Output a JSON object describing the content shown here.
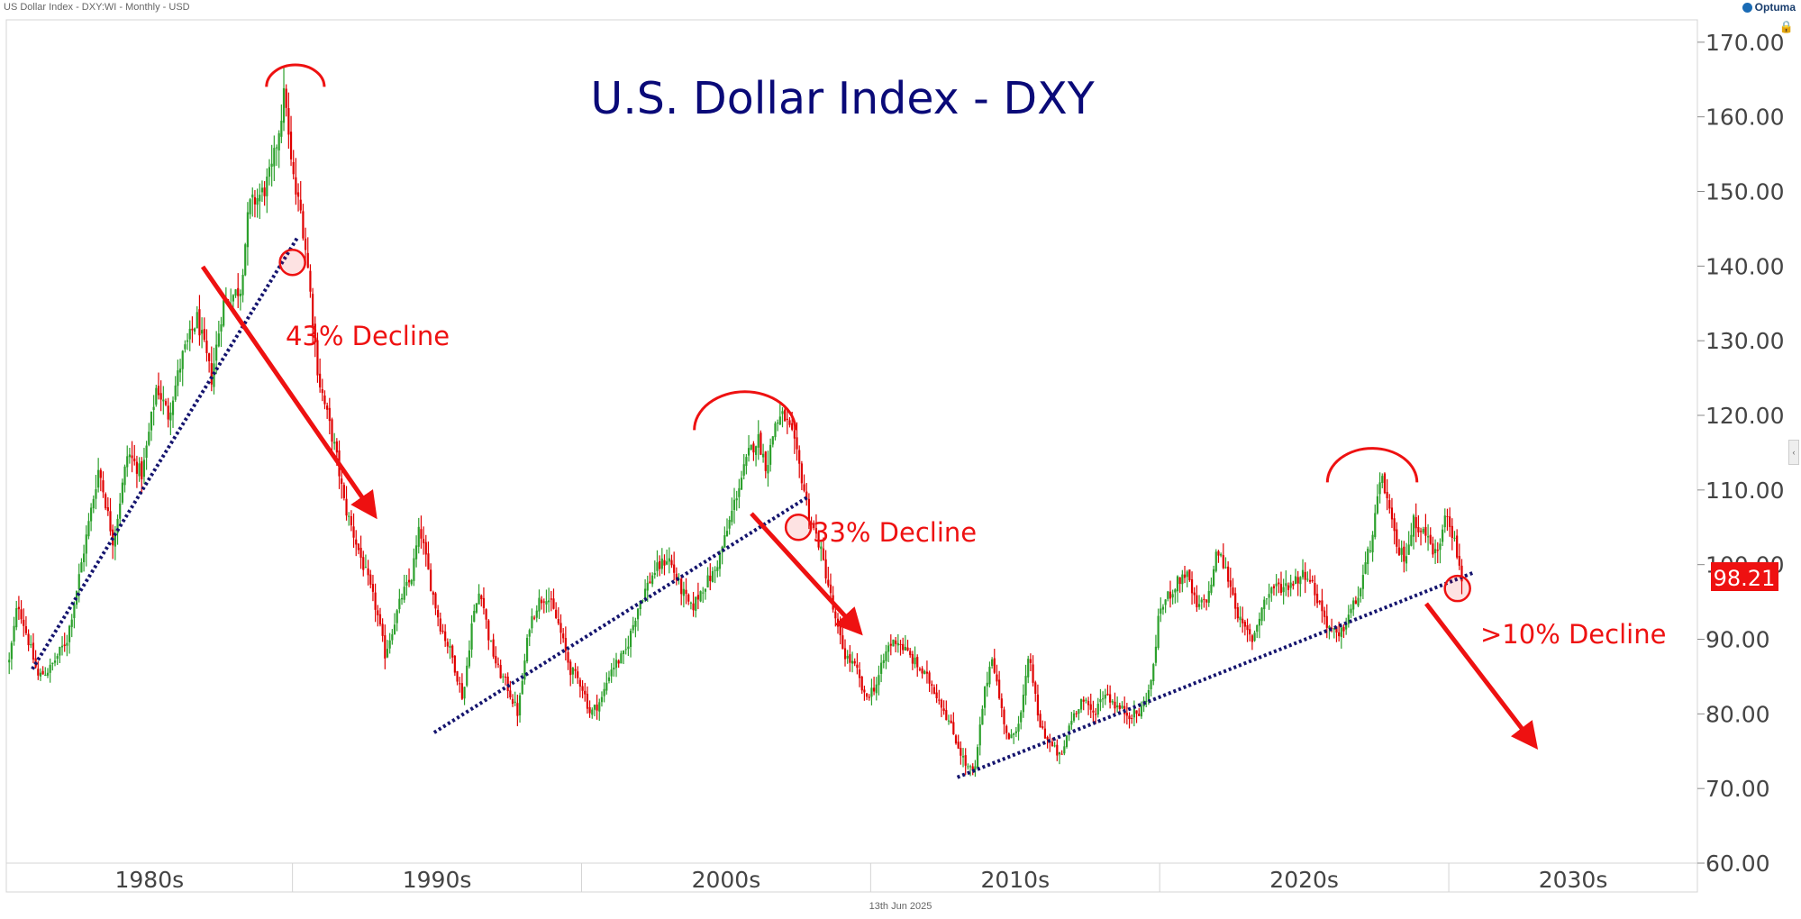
{
  "header": {
    "chart_label": "US Dollar Index - DXY:WI - Monthly - USD",
    "brand": "Optuma",
    "footer_date": "13th Jun 2025"
  },
  "colors": {
    "up": "#2ca02c",
    "down": "#e00000",
    "annotation": "#ee1111",
    "trendline": "#14146e",
    "title": "#0a0a78",
    "price_box": "#ee1111"
  },
  "icons": {
    "lock": "lock-icon",
    "side_handle": "chevron-left-icon"
  },
  "annotations": {
    "declines": [
      {
        "label": "43% Decline"
      },
      {
        "label": "33% Decline"
      },
      {
        "label": ">10% Decline"
      }
    ],
    "last_price": "98.21"
  },
  "chart_data": {
    "type": "candlestick",
    "title": "U.S. Dollar Index - DXY",
    "frequency": "Monthly",
    "currency": "USD",
    "x_range": [
      1975.1,
      2033.6
    ],
    "ylim": [
      60,
      173
    ],
    "y_ticks": [
      "60.00",
      "70.00",
      "80.00",
      "90.00",
      "100.00",
      "110.00",
      "120.00",
      "130.00",
      "140.00",
      "150.00",
      "160.00",
      "170.00"
    ],
    "x_ticks": [
      {
        "label": "1980s",
        "start": 1975,
        "end": 1985
      },
      {
        "label": "1990s",
        "start": 1985,
        "end": 1995
      },
      {
        "label": "2000s",
        "start": 1995,
        "end": 2005
      },
      {
        "label": "2010s",
        "start": 2005,
        "end": 2015
      },
      {
        "label": "2020s",
        "start": 2015,
        "end": 2025
      },
      {
        "label": "2030s",
        "start": 2025,
        "end": 2035
      }
    ],
    "price_path": [
      [
        1975.2,
        87
      ],
      [
        1975.5,
        95
      ],
      [
        1976.2,
        85
      ],
      [
        1976.6,
        86
      ],
      [
        1977.2,
        90
      ],
      [
        1977.6,
        98
      ],
      [
        1978.3,
        113
      ],
      [
        1978.8,
        103
      ],
      [
        1979.3,
        115
      ],
      [
        1979.8,
        112
      ],
      [
        1980.3,
        124
      ],
      [
        1980.7,
        120
      ],
      [
        1981.2,
        128
      ],
      [
        1981.7,
        133
      ],
      [
        1982.2,
        125
      ],
      [
        1982.6,
        135
      ],
      [
        1983.2,
        137
      ],
      [
        1983.5,
        148
      ],
      [
        1984.0,
        150
      ],
      [
        1984.3,
        153
      ],
      [
        1984.6,
        160
      ],
      [
        1984.75,
        164
      ],
      [
        1984.9,
        155
      ],
      [
        1985.1,
        150
      ],
      [
        1985.3,
        147
      ],
      [
        1985.5,
        141
      ],
      [
        1985.7,
        133
      ],
      [
        1985.9,
        125
      ],
      [
        1986.2,
        120
      ],
      [
        1986.5,
        115
      ],
      [
        1986.8,
        108
      ],
      [
        1987.2,
        103
      ],
      [
        1987.6,
        98
      ],
      [
        1987.9,
        94
      ],
      [
        1988.2,
        88
      ],
      [
        1988.5,
        92
      ],
      [
        1988.8,
        96
      ],
      [
        1989.1,
        98
      ],
      [
        1989.4,
        105
      ],
      [
        1989.8,
        97
      ],
      [
        1990.1,
        92
      ],
      [
        1990.5,
        88
      ],
      [
        1990.9,
        82
      ],
      [
        1991.2,
        92
      ],
      [
        1991.5,
        97
      ],
      [
        1991.8,
        90
      ],
      [
        1992.1,
        86
      ],
      [
        1992.4,
        84
      ],
      [
        1992.8,
        80
      ],
      [
        1993.2,
        92
      ],
      [
        1993.5,
        95
      ],
      [
        1993.8,
        96
      ],
      [
        1994.2,
        92
      ],
      [
        1994.6,
        86
      ],
      [
        1995.0,
        84
      ],
      [
        1995.3,
        80
      ],
      [
        1995.7,
        82
      ],
      [
        1996.0,
        86
      ],
      [
        1996.5,
        88
      ],
      [
        1997.0,
        95
      ],
      [
        1997.5,
        99
      ],
      [
        1998.0,
        101
      ],
      [
        1998.4,
        97
      ],
      [
        1998.8,
        94
      ],
      [
        1999.2,
        97
      ],
      [
        1999.6,
        99
      ],
      [
        2000.0,
        104
      ],
      [
        2000.4,
        110
      ],
      [
        2000.8,
        115
      ],
      [
        2001.1,
        117
      ],
      [
        2001.4,
        113
      ],
      [
        2001.7,
        119
      ],
      [
        2002.0,
        120
      ],
      [
        2002.3,
        117
      ],
      [
        2002.6,
        112
      ],
      [
        2002.9,
        106
      ],
      [
        2003.2,
        103
      ],
      [
        2003.5,
        98
      ],
      [
        2003.8,
        92
      ],
      [
        2004.1,
        88
      ],
      [
        2004.5,
        86
      ],
      [
        2004.8,
        82
      ],
      [
        2005.2,
        84
      ],
      [
        2005.6,
        89
      ],
      [
        2005.9,
        90
      ],
      [
        2006.3,
        88
      ],
      [
        2006.7,
        86
      ],
      [
        2007.1,
        84
      ],
      [
        2007.5,
        81
      ],
      [
        2007.9,
        77
      ],
      [
        2008.3,
        73
      ],
      [
        2008.6,
        72
      ],
      [
        2008.9,
        82
      ],
      [
        2009.2,
        88
      ],
      [
        2009.5,
        81
      ],
      [
        2009.8,
        76
      ],
      [
        2010.2,
        80
      ],
      [
        2010.5,
        88
      ],
      [
        2010.8,
        79
      ],
      [
        2011.2,
        76
      ],
      [
        2011.6,
        74
      ],
      [
        2011.9,
        79
      ],
      [
        2012.3,
        82
      ],
      [
        2012.7,
        80
      ],
      [
        2013.1,
        83
      ],
      [
        2013.5,
        81
      ],
      [
        2013.9,
        80
      ],
      [
        2014.3,
        80
      ],
      [
        2014.7,
        84
      ],
      [
        2015.0,
        94
      ],
      [
        2015.5,
        97
      ],
      [
        2015.9,
        99
      ],
      [
        2016.3,
        94
      ],
      [
        2016.7,
        96
      ],
      [
        2017.0,
        102
      ],
      [
        2017.4,
        98
      ],
      [
        2017.8,
        92
      ],
      [
        2018.2,
        90
      ],
      [
        2018.6,
        95
      ],
      [
        2018.9,
        97
      ],
      [
        2019.3,
        97
      ],
      [
        2019.7,
        98
      ],
      [
        2020.1,
        99
      ],
      [
        2020.4,
        96
      ],
      [
        2020.8,
        92
      ],
      [
        2021.2,
        90
      ],
      [
        2021.5,
        93
      ],
      [
        2021.9,
        96
      ],
      [
        2022.3,
        103
      ],
      [
        2022.7,
        112
      ],
      [
        2022.9,
        108
      ],
      [
        2023.2,
        102
      ],
      [
        2023.5,
        101
      ],
      [
        2023.8,
        106
      ],
      [
        2024.2,
        104
      ],
      [
        2024.6,
        101
      ],
      [
        2024.9,
        108
      ],
      [
        2025.2,
        103
      ],
      [
        2025.45,
        98.21
      ]
    ]
  }
}
